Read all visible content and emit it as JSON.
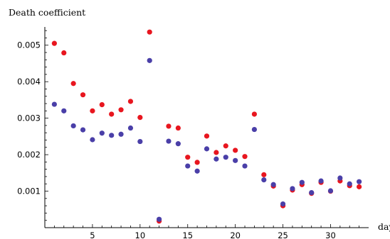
{
  "chart_data": {
    "type": "scatter",
    "title": "",
    "ylabel": "Death coefficient",
    "xlabel": "day",
    "xlim": [
      0,
      34
    ],
    "ylim": [
      0,
      0.0055
    ],
    "x_ticks": [
      5,
      10,
      15,
      20,
      25,
      30
    ],
    "y_ticks": [
      0.001,
      0.002,
      0.003,
      0.004,
      0.005
    ],
    "y_tick_labels": [
      "0.001",
      "0.002",
      "0.003",
      "0.004",
      "0.005"
    ],
    "x_tick_labels": [
      "5",
      "10",
      "15",
      "20",
      "25",
      "30"
    ],
    "grid": false,
    "series": [
      {
        "color": "#e8161f",
        "points": [
          [
            1,
            0.00505
          ],
          [
            2,
            0.00479
          ],
          [
            3,
            0.00395
          ],
          [
            4,
            0.00364
          ],
          [
            5,
            0.0032
          ],
          [
            6,
            0.00337
          ],
          [
            7,
            0.00311
          ],
          [
            8,
            0.00323
          ],
          [
            9,
            0.00346
          ],
          [
            10,
            0.00302
          ],
          [
            11,
            0.00536
          ],
          [
            12,
            0.00018
          ],
          [
            13,
            0.00278
          ],
          [
            14,
            0.00273
          ],
          [
            15,
            0.00193
          ],
          [
            16,
            0.00179
          ],
          [
            17,
            0.00251
          ],
          [
            18,
            0.00206
          ],
          [
            19,
            0.00224
          ],
          [
            20,
            0.00212
          ],
          [
            21,
            0.00195
          ],
          [
            22,
            0.00311
          ],
          [
            23,
            0.00145
          ],
          [
            24,
            0.00114
          ],
          [
            25,
            0.0006
          ],
          [
            26,
            0.00103
          ],
          [
            27,
            0.00118
          ],
          [
            28,
            0.00094
          ],
          [
            29,
            0.00124
          ],
          [
            30,
            0.001
          ],
          [
            31,
            0.00128
          ],
          [
            32,
            0.00115
          ],
          [
            33,
            0.00112
          ]
        ]
      },
      {
        "color": "#4a3fa8",
        "points": [
          [
            1,
            0.00338
          ],
          [
            2,
            0.0032
          ],
          [
            3,
            0.00279
          ],
          [
            4,
            0.00268
          ],
          [
            5,
            0.00241
          ],
          [
            6,
            0.00259
          ],
          [
            7,
            0.00253
          ],
          [
            8,
            0.00256
          ],
          [
            9,
            0.00273
          ],
          [
            10,
            0.00236
          ],
          [
            11,
            0.00458
          ],
          [
            12,
            0.00023
          ],
          [
            13,
            0.00237
          ],
          [
            14,
            0.0023
          ],
          [
            15,
            0.00169
          ],
          [
            16,
            0.00155
          ],
          [
            17,
            0.00216
          ],
          [
            18,
            0.00188
          ],
          [
            19,
            0.00193
          ],
          [
            20,
            0.00184
          ],
          [
            21,
            0.00169
          ],
          [
            22,
            0.00269
          ],
          [
            23,
            0.00131
          ],
          [
            24,
            0.00118
          ],
          [
            25,
            0.00065
          ],
          [
            26,
            0.00107
          ],
          [
            27,
            0.00124
          ],
          [
            28,
            0.00096
          ],
          [
            29,
            0.00128
          ],
          [
            30,
            0.00101
          ],
          [
            31,
            0.00136
          ],
          [
            32,
            0.0012
          ],
          [
            33,
            0.00126
          ]
        ]
      }
    ]
  }
}
